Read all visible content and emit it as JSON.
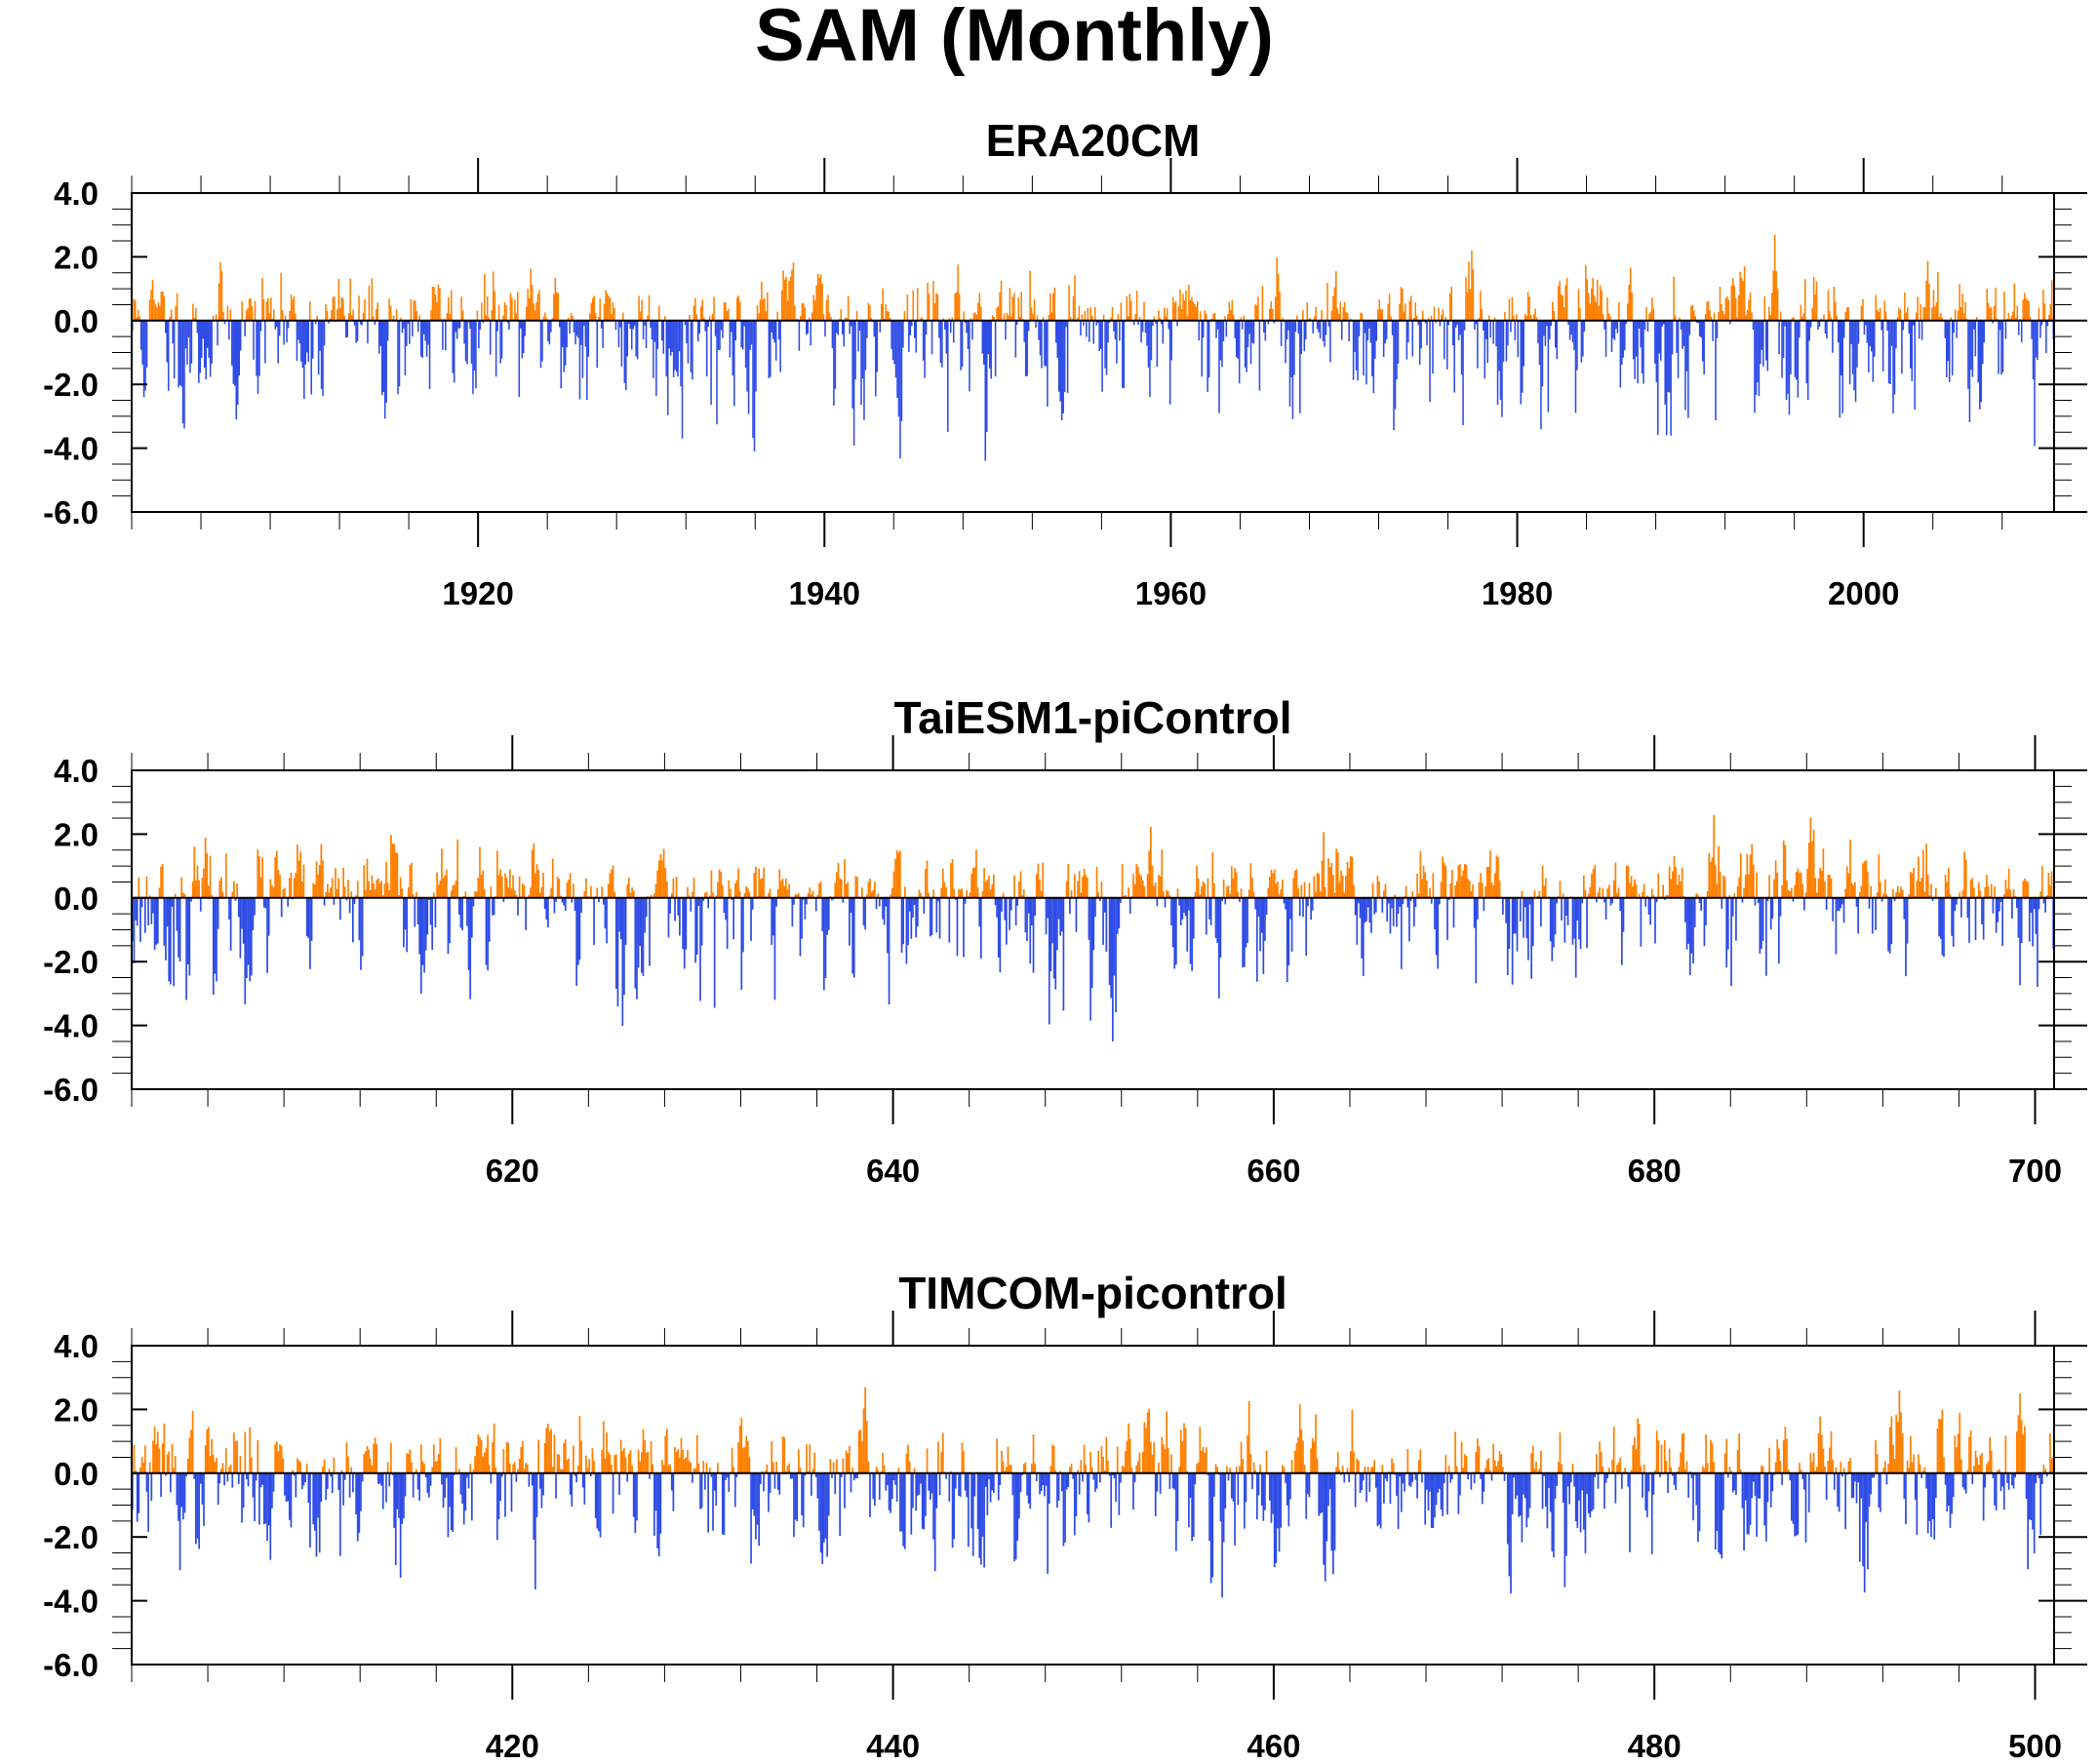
{
  "figure": {
    "title": "SAM (Monthly)"
  },
  "colors": {
    "positive": "#ff8000",
    "negative": "#2e4ce6"
  },
  "chart_data": [
    {
      "type": "bar",
      "title": "ERA20CM",
      "xlabel": "",
      "ylabel": "",
      "series": "monthly SAM index",
      "x_start": 1900.0,
      "x_end": 2011.0,
      "months": 1332,
      "ylim": [
        -6.0,
        4.0
      ],
      "y_ticks": [
        4.0,
        2.0,
        0.0,
        -2.0,
        -4.0,
        -6.0
      ],
      "y_tick_labels": [
        "4.0",
        "2.0",
        "0.0",
        "-2.0",
        "-4.0",
        "-6.0"
      ],
      "x_ticks": [
        1920,
        1940,
        1960,
        1980,
        2000
      ],
      "x_tick_labels": [
        "1920",
        "1940",
        "1960",
        "1980",
        "2000"
      ],
      "approx_max": 2.7,
      "approx_min": -4.4,
      "seed": 11,
      "grid": false
    },
    {
      "type": "bar",
      "title": "TaiESM1-piControl",
      "xlabel": "",
      "ylabel": "",
      "series": "monthly SAM index",
      "x_start": 600.0,
      "x_end": 701.0,
      "months": 1212,
      "ylim": [
        -6.0,
        4.0
      ],
      "y_ticks": [
        4.0,
        2.0,
        0.0,
        -2.0,
        -4.0,
        -6.0
      ],
      "y_tick_labels": [
        "4.0",
        "2.0",
        "0.0",
        "-2.0",
        "-4.0",
        "-6.0"
      ],
      "x_ticks": [
        620,
        640,
        660,
        680,
        700
      ],
      "x_tick_labels": [
        "620",
        "640",
        "660",
        "680",
        "700"
      ],
      "approx_max": 2.6,
      "approx_min": -4.5,
      "seed": 23,
      "grid": false
    },
    {
      "type": "bar",
      "title": "TIMCOM-picontrol",
      "xlabel": "",
      "ylabel": "",
      "series": "monthly SAM index",
      "x_start": 400.0,
      "x_end": 501.0,
      "months": 1212,
      "ylim": [
        -6.0,
        4.0
      ],
      "y_ticks": [
        4.0,
        2.0,
        0.0,
        -2.0,
        -4.0,
        -6.0
      ],
      "y_tick_labels": [
        "4.0",
        "2.0",
        "0.0",
        "-2.0",
        "-4.0",
        "-6.0"
      ],
      "x_ticks": [
        420,
        440,
        460,
        480,
        500
      ],
      "x_tick_labels": [
        "420",
        "440",
        "460",
        "480",
        "500"
      ],
      "approx_max": 2.7,
      "approx_min": -3.9,
      "seed": 37,
      "grid": false
    }
  ]
}
